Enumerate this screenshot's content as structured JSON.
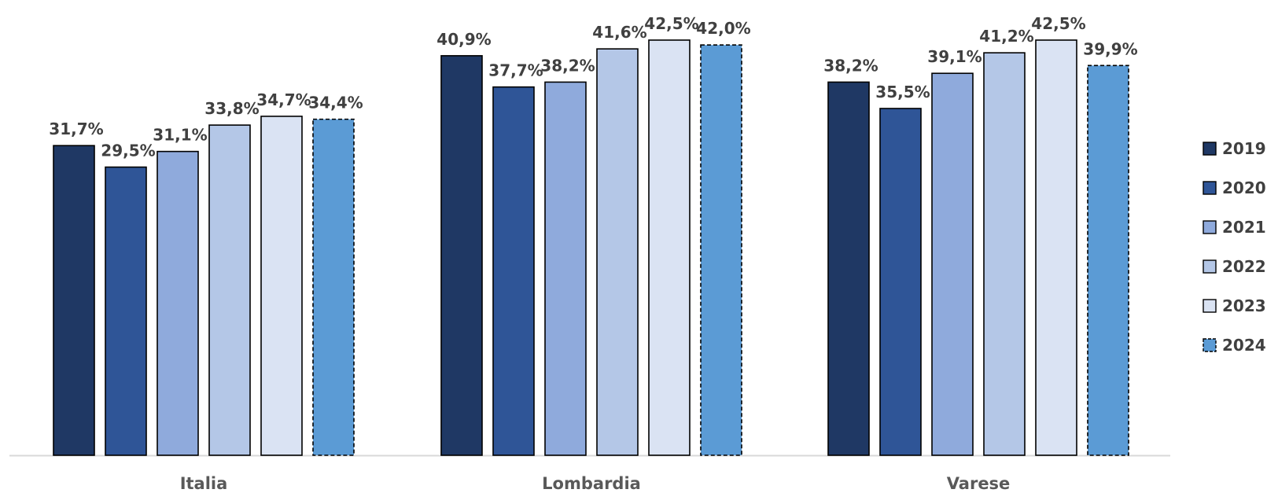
{
  "chart_data": {
    "type": "bar",
    "categories": [
      "Italia",
      "Lombardia",
      "Varese"
    ],
    "series": [
      {
        "name": "2019",
        "values": [
          31.7,
          40.9,
          38.2
        ],
        "labels": [
          "31,7%",
          "40,9%",
          "38,2%"
        ],
        "color": "#1F3864",
        "dashed": false
      },
      {
        "name": "2020",
        "values": [
          29.5,
          37.7,
          35.5
        ],
        "labels": [
          "29,5%",
          "37,7%",
          "35,5%"
        ],
        "color": "#2F5597",
        "dashed": false
      },
      {
        "name": "2021",
        "values": [
          31.1,
          38.2,
          39.1
        ],
        "labels": [
          "31,1%",
          "38,2%",
          "39,1%"
        ],
        "color": "#8FAADC",
        "dashed": false
      },
      {
        "name": "2022",
        "values": [
          33.8,
          41.6,
          41.2
        ],
        "labels": [
          "33,8%",
          "41,6%",
          "41,2%"
        ],
        "color": "#B4C7E7",
        "dashed": false
      },
      {
        "name": "2023",
        "values": [
          34.7,
          42.5,
          42.5
        ],
        "labels": [
          "34,7%",
          "42,5%",
          "42,5%"
        ],
        "color": "#DAE3F3",
        "dashed": false
      },
      {
        "name": "2024",
        "values": [
          34.4,
          42.0,
          39.9
        ],
        "labels": [
          "34,4%",
          "42,0%",
          "39,9%"
        ],
        "color": "#5B9BD5",
        "dashed": true
      }
    ],
    "ylim": [
      0,
      42.5
    ],
    "grid": false,
    "legend": "right"
  }
}
